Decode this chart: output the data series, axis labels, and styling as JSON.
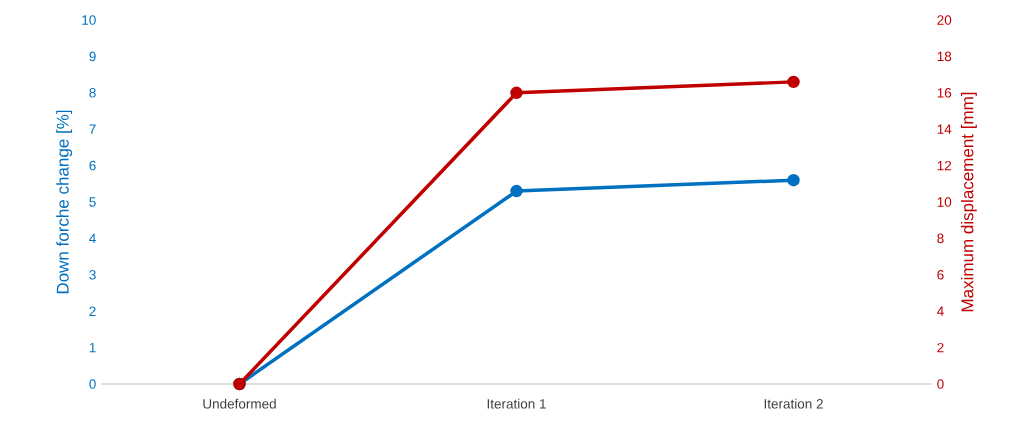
{
  "chart_data": {
    "type": "line",
    "ylabel": "Down forche change [%]",
    "y2label": "Maximum displacement [mm]",
    "categories": [
      "Undeformed",
      "Iteration 1",
      "Iteration 2"
    ],
    "series": [
      {
        "name": null,
        "color": "#0070c0",
        "values": [
          0,
          5.3,
          5.6
        ]
      },
      {
        "name": null,
        "color": "#c00000",
        "axis": "y2",
        "values": [
          0,
          16,
          16.6
        ]
      }
    ],
    "ylim": [
      0,
      10
    ],
    "yticks": [
      0,
      1,
      2,
      3,
      4,
      5,
      6,
      7,
      8,
      9,
      10
    ],
    "y2lim": [
      0,
      20
    ],
    "y2ticks": [
      0,
      2,
      4,
      6,
      8,
      10,
      12,
      14,
      16,
      18,
      20
    ],
    "grid": false,
    "marker": "circle",
    "line_style": "solid"
  }
}
